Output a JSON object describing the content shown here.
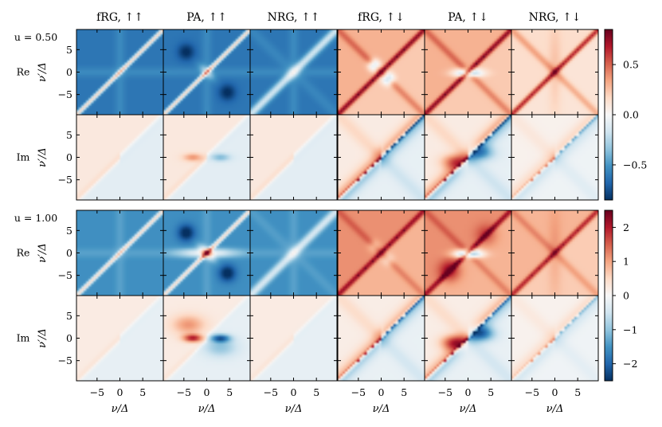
{
  "chart_data": {
    "type": "heatmap",
    "column_titles": [
      "fRG, ↑↑",
      "PA, ↑↑",
      "NRG, ↑↑",
      "fRG, ↑↓",
      "PA, ↑↓",
      "NRG, ↑↓"
    ],
    "x_axis_label": "ν/Δ",
    "y_axis_label": "ν′/Δ",
    "x_range": [
      -9.5,
      9.5
    ],
    "y_range": [
      -9.5,
      9.5
    ],
    "x_ticks": [
      -5,
      0,
      5
    ],
    "x_tick_labels": [
      "−5",
      "0",
      "5"
    ],
    "y_ticks": [
      5,
      0,
      -5
    ],
    "y_tick_labels": [
      "5",
      "0",
      "−5"
    ],
    "colormap": "RdBu_r",
    "colormap_endpoints": {
      "low": "#053061",
      "mid": "#f7f7f7",
      "high": "#67001f"
    },
    "groups": [
      {
        "label": "u = 0.50",
        "rows": [
          {
            "label": "Re",
            "pattern_estimates": [
              "-0.65",
              "-0.6",
              "-0.55",
              "0.35",
              "0.3",
              "0.15"
            ]
          },
          {
            "label": "Im",
            "pattern_estimates": [
              "0.05",
              "0.08",
              "0.05",
              "0.1",
              "0.15",
              "0.05"
            ]
          }
        ],
        "colorbar": {
          "vmin": -0.85,
          "vmax": 0.85,
          "ticks": [
            0.5,
            0.0,
            -0.5
          ],
          "tick_labels": [
            "0.5",
            "0.0",
            "−0.5"
          ]
        }
      },
      {
        "label": "u = 1.00",
        "rows": [
          {
            "label": "Re",
            "pattern_estimates": [
              "-1.6",
              "-1.2",
              "-1.4",
              "1.2",
              "1.0",
              "0.9"
            ]
          },
          {
            "label": "Im",
            "pattern_estimates": [
              "0.1",
              "0.2",
              "0.15",
              "0.2",
              "0.4",
              "0.3"
            ]
          }
        ],
        "colorbar": {
          "vmin": -2.5,
          "vmax": 2.5,
          "ticks": [
            2,
            1,
            0,
            -1,
            -2
          ],
          "tick_labels": [
            "2",
            "1",
            "0",
            "−1",
            "−2"
          ]
        }
      }
    ]
  }
}
